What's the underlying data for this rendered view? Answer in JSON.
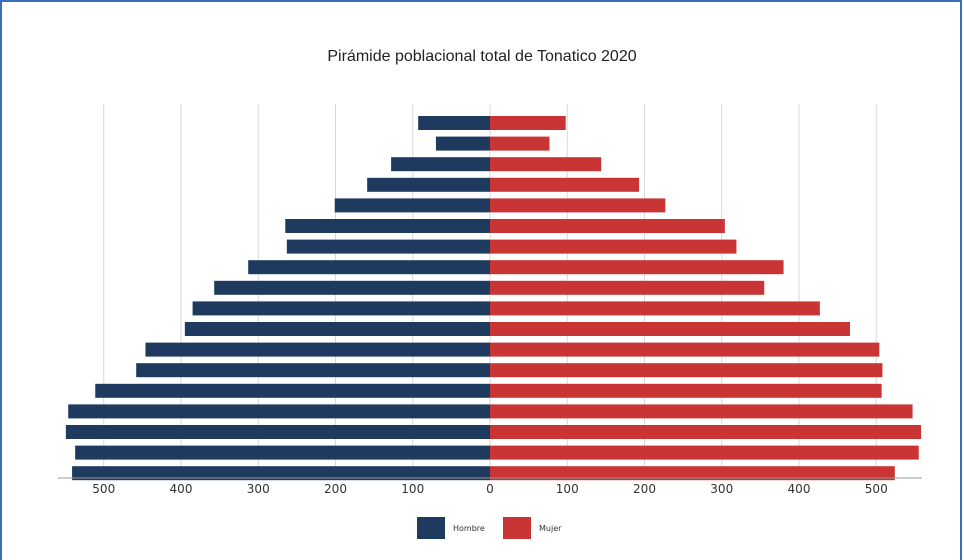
{
  "chart_data": {
    "type": "bar",
    "orientation": "horizontal-pyramid",
    "title": "Pirámide poblacional total de Tonatico 2020",
    "xlabel": "",
    "ylabel": "",
    "xlim": [
      -550,
      550
    ],
    "xticks": [
      500,
      400,
      300,
      200,
      100,
      0,
      100,
      200,
      300,
      400,
      500
    ],
    "grid": true,
    "legend_position": "bottom",
    "rows": 18,
    "series": [
      {
        "name": "Hombre",
        "color": "#1e3a5f",
        "side": "left",
        "values": [
          93,
          70,
          128,
          159,
          201,
          265,
          263,
          313,
          357,
          385,
          395,
          446,
          458,
          511,
          546,
          549,
          537,
          541
        ]
      },
      {
        "name": "Mujer",
        "color": "#c93434",
        "side": "right",
        "values": [
          98,
          77,
          144,
          193,
          227,
          304,
          319,
          380,
          355,
          427,
          466,
          504,
          508,
          507,
          547,
          558,
          555,
          524
        ]
      }
    ]
  }
}
